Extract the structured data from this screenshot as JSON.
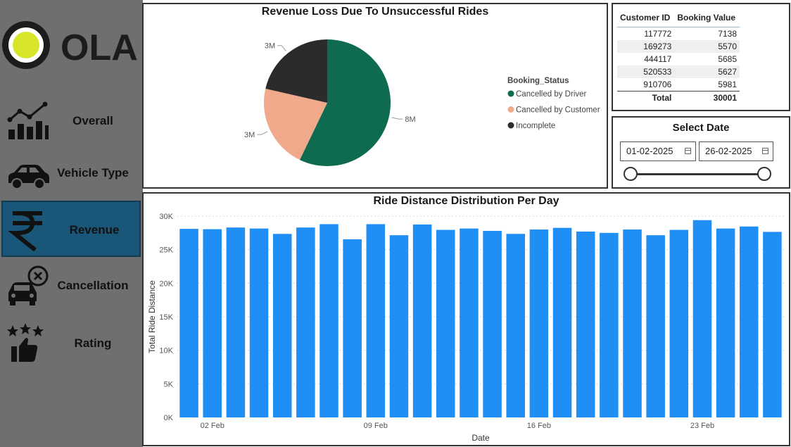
{
  "brand": {
    "name": "OLA",
    "accent": "#d7e62b"
  },
  "nav": {
    "active": "Revenue",
    "items": [
      {
        "label": "Overall",
        "icon": "line-bar-chart-icon"
      },
      {
        "label": "Vehicle Type",
        "icon": "car-icon"
      },
      {
        "label": "Revenue",
        "icon": "rupee-icon"
      },
      {
        "label": "Cancellation",
        "icon": "car-cancel-icon"
      },
      {
        "label": "Rating",
        "icon": "thumbs-up-stars-icon"
      }
    ]
  },
  "table": {
    "headers": [
      "Customer ID",
      "Booking Value"
    ],
    "rows": [
      {
        "id": "117772",
        "value": "7138"
      },
      {
        "id": "169273",
        "value": "5570"
      },
      {
        "id": "444117",
        "value": "5685"
      },
      {
        "id": "520533",
        "value": "5627"
      },
      {
        "id": "910706",
        "value": "5981"
      }
    ],
    "total_label": "Total",
    "total_value": "30001"
  },
  "date_filter": {
    "title": "Select Date",
    "start": "01-02-2025",
    "end": "26-02-2025"
  },
  "chart_data": [
    {
      "type": "pie",
      "title": "Revenue Loss Due To Unsuccessful Rides",
      "legend_title": "Booking_Status",
      "legend_position": "right",
      "slices": [
        {
          "name": "Cancelled by Driver",
          "value": 8,
          "label": "8M",
          "color": "#0f6b50"
        },
        {
          "name": "Cancelled by Customer",
          "value": 3,
          "label": "3M",
          "color": "#f0a98a"
        },
        {
          "name": "Incomplete",
          "value": 3,
          "label": "3M",
          "color": "#2b2b2b"
        }
      ]
    },
    {
      "type": "bar",
      "title": "Ride Distance Distribution Per Day",
      "xlabel": "Date",
      "ylabel": "Total Ride Distance",
      "ylim": [
        0,
        30000
      ],
      "yticks": [
        {
          "v": 0,
          "label": "0K"
        },
        {
          "v": 5000,
          "label": "5K"
        },
        {
          "v": 10000,
          "label": "10K"
        },
        {
          "v": 15000,
          "label": "15K"
        },
        {
          "v": 20000,
          "label": "20K"
        },
        {
          "v": 25000,
          "label": "25K"
        },
        {
          "v": 30000,
          "label": "30K"
        }
      ],
      "xticks": [
        {
          "date": "02 Feb",
          "label": "02 Feb"
        },
        {
          "date": "09 Feb",
          "label": "09 Feb"
        },
        {
          "date": "16 Feb",
          "label": "16 Feb"
        },
        {
          "date": "23 Feb",
          "label": "23 Feb"
        }
      ],
      "grid": true,
      "bar_color": "#1f8ff5",
      "categories": [
        "01 Feb",
        "02 Feb",
        "03 Feb",
        "04 Feb",
        "05 Feb",
        "06 Feb",
        "07 Feb",
        "08 Feb",
        "09 Feb",
        "10 Feb",
        "11 Feb",
        "12 Feb",
        "13 Feb",
        "14 Feb",
        "15 Feb",
        "16 Feb",
        "17 Feb",
        "18 Feb",
        "19 Feb",
        "20 Feb",
        "21 Feb",
        "22 Feb",
        "23 Feb",
        "24 Feb",
        "25 Feb",
        "26 Feb"
      ],
      "values": [
        28100,
        28050,
        28300,
        28150,
        27350,
        28300,
        28800,
        26550,
        28800,
        27150,
        28750,
        27950,
        28150,
        27800,
        27350,
        28000,
        28250,
        27700,
        27500,
        28000,
        27150,
        27950,
        29400,
        28150,
        28450,
        27650
      ]
    }
  ]
}
